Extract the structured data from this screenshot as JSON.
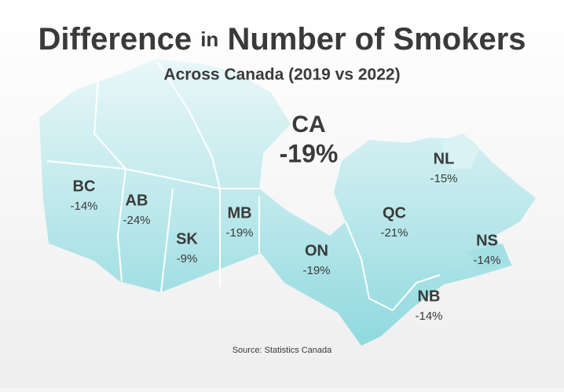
{
  "header": {
    "title_start": "Difference",
    "title_middle": "in",
    "title_end": "Number of Smokers",
    "subtitle": "Across Canada (2019 vs 2022)"
  },
  "national": {
    "code": "CA",
    "value": "-19%"
  },
  "regions": [
    {
      "code": "BC",
      "value": "-14%"
    },
    {
      "code": "AB",
      "value": "-24%"
    },
    {
      "code": "SK",
      "value": "-9%"
    },
    {
      "code": "MB",
      "value": "-19%"
    },
    {
      "code": "ON",
      "value": "-19%"
    },
    {
      "code": "QC",
      "value": "-21%"
    },
    {
      "code": "NL",
      "value": "-15%"
    },
    {
      "code": "NS",
      "value": "-14%"
    },
    {
      "code": "NB",
      "value": "-14%"
    }
  ],
  "source": "Source: Statistics Canada"
}
